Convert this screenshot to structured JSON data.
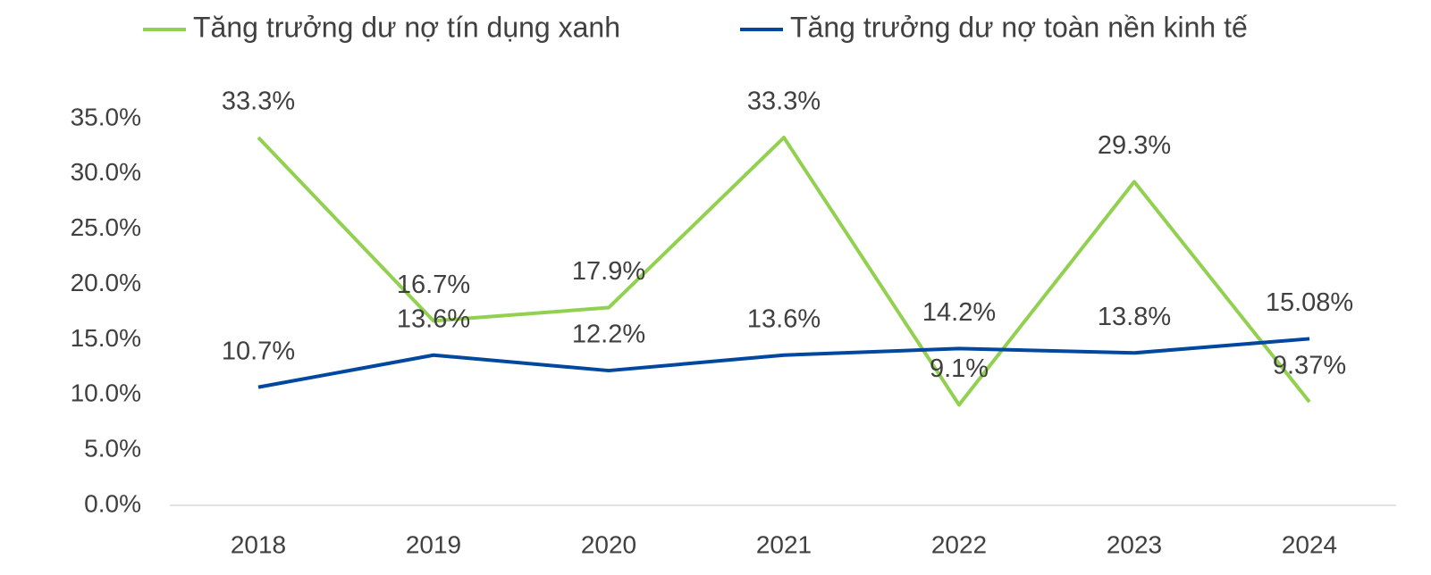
{
  "chart_data": {
    "type": "line",
    "categories": [
      "2018",
      "2019",
      "2020",
      "2021",
      "2022",
      "2023",
      "2024"
    ],
    "series": [
      {
        "name": "Tăng trưởng dư nợ tín dụng xanh",
        "color": "#92d050",
        "values": [
          33.3,
          16.7,
          17.9,
          33.3,
          9.1,
          29.3,
          9.37
        ],
        "value_labels": [
          "33.3%",
          "16.7%",
          "17.9%",
          "33.3%",
          "9.1%",
          "29.3%",
          "9.37%"
        ]
      },
      {
        "name": "Tăng trưởng dư nợ toàn nền kinh tế",
        "color": "#0047a0",
        "values": [
          10.7,
          13.6,
          12.2,
          13.6,
          14.2,
          13.8,
          15.08
        ],
        "value_labels": [
          "10.7%",
          "13.6%",
          "12.2%",
          "13.6%",
          "14.2%",
          "13.8%",
          "15.08%"
        ]
      }
    ],
    "ylim": [
      0,
      35
    ],
    "yticks": [
      {
        "value": 0,
        "label": "0.0%"
      },
      {
        "value": 5,
        "label": "5.0%"
      },
      {
        "value": 10,
        "label": "10.0%"
      },
      {
        "value": 15,
        "label": "15.0%"
      },
      {
        "value": 20,
        "label": "20.0%"
      },
      {
        "value": 25,
        "label": "25.0%"
      },
      {
        "value": 30,
        "label": "30.0%"
      },
      {
        "value": 35,
        "label": "35.0%"
      }
    ],
    "legend": "top",
    "grid": false
  }
}
